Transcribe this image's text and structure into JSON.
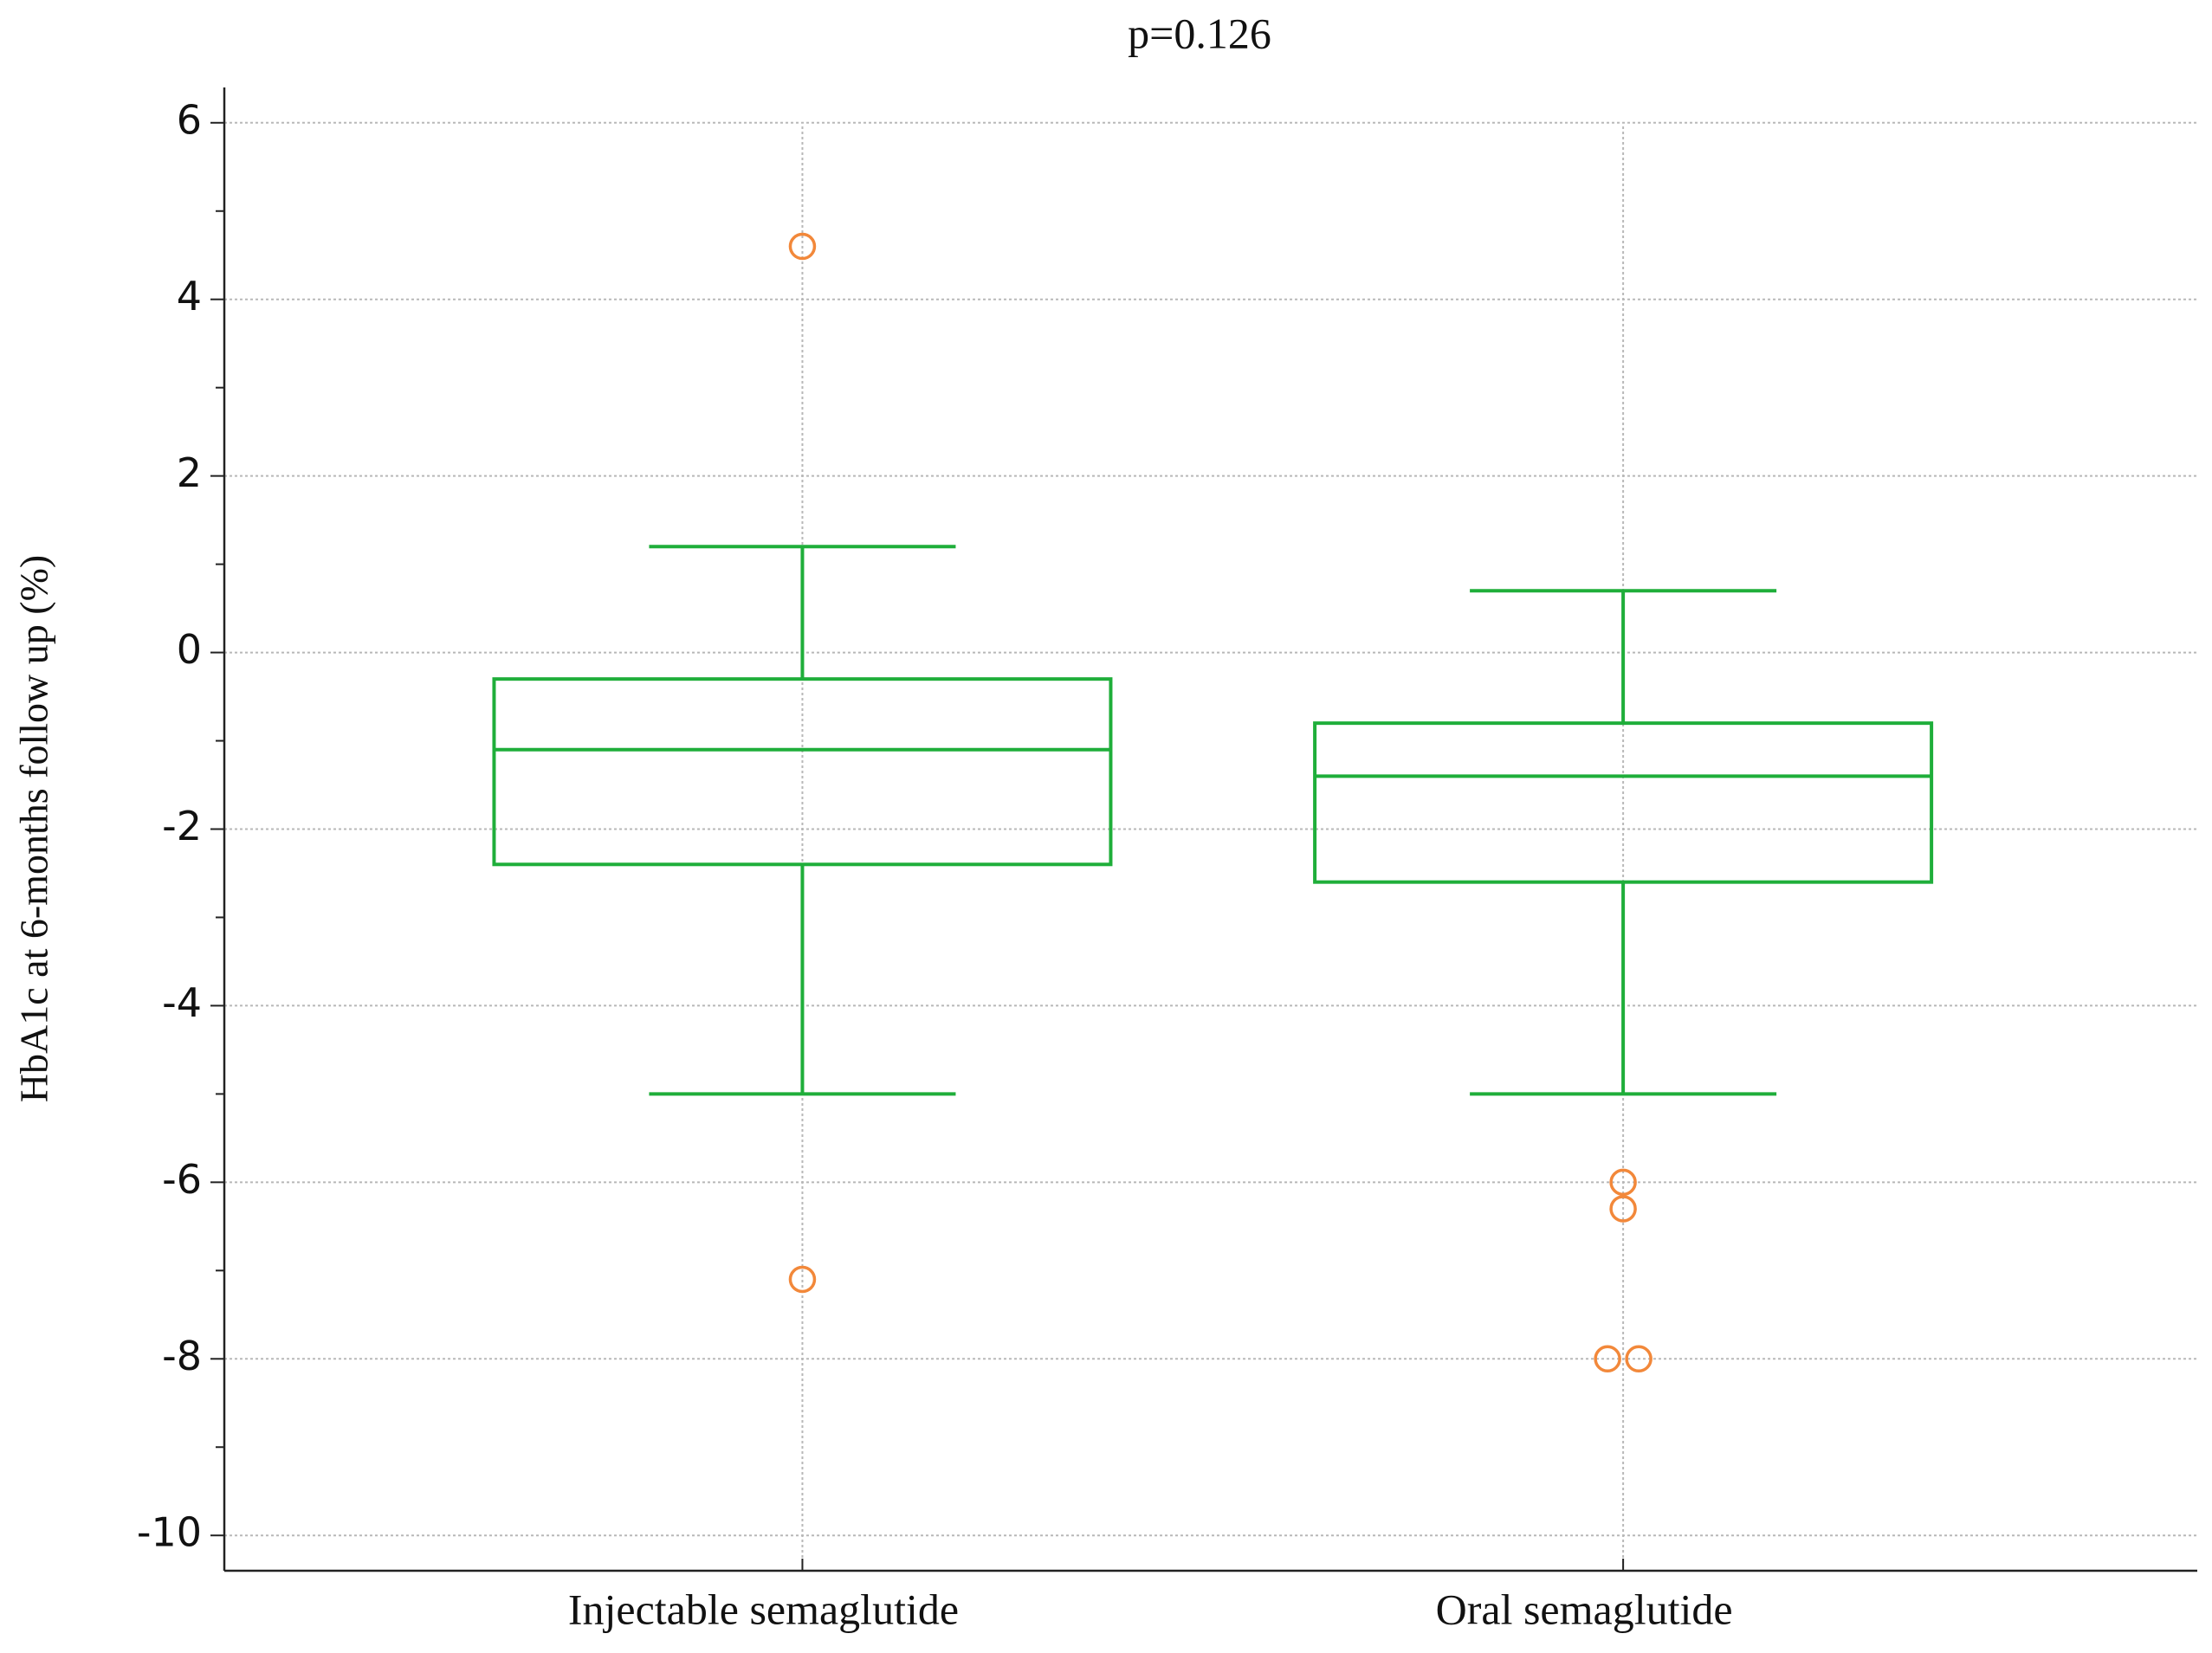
{
  "chart_data": {
    "type": "box",
    "title": "p=0.126",
    "y_label": "HbA1c at 6-months follow up (%)",
    "categories": [
      "Injectable semaglutide",
      "Oral semaglutide"
    ],
    "boxes": [
      {
        "whisker_low": -5.0,
        "q1": -2.4,
        "median": -1.1,
        "q3": -0.3,
        "whisker_high": 1.2,
        "outliers": [
          4.6,
          -7.1
        ]
      },
      {
        "whisker_low": -5.0,
        "q1": -2.6,
        "median": -1.4,
        "q3": -0.8,
        "whisker_high": 0.7,
        "outliers": [
          -6.0,
          -6.3,
          -8.0,
          -8.0
        ]
      }
    ],
    "color": "#1fae3a",
    "outlier_color": "#f2883a",
    "ylim": [
      -10.4,
      6.4
    ],
    "yticks": [
      -10,
      -8,
      -6,
      -4,
      -2,
      0,
      2,
      4,
      6
    ],
    "yminor_ticks": [
      -9,
      -7,
      -5,
      -3,
      -1,
      1,
      3,
      5
    ],
    "grid": true
  }
}
